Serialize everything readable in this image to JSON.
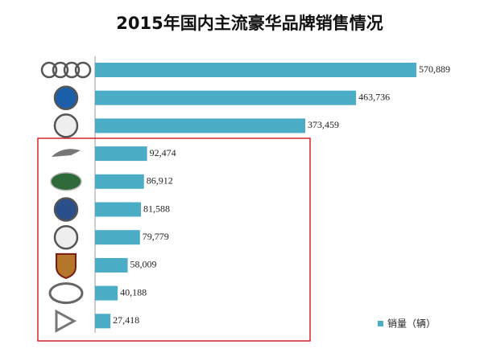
{
  "chart_data": {
    "type": "bar",
    "orientation": "horizontal",
    "title": "2015年国内主流豪华品牌销售情况",
    "categories": [
      null,
      null,
      null,
      null,
      null,
      null,
      null,
      null,
      null,
      null
    ],
    "series": [
      {
        "name": "销量（辆）",
        "color": "#4bacc6",
        "values": [
          570889,
          463736,
          373459,
          92474,
          86912,
          81588,
          79779,
          58009,
          40188,
          27418
        ],
        "value_labels": [
          "570,889",
          "463,736",
          "373,459",
          "92,474",
          "86,912",
          "81,588",
          "79,779",
          "58,009",
          "40,188",
          "27,418"
        ]
      }
    ],
    "legend": "bottom-right"
  }
}
